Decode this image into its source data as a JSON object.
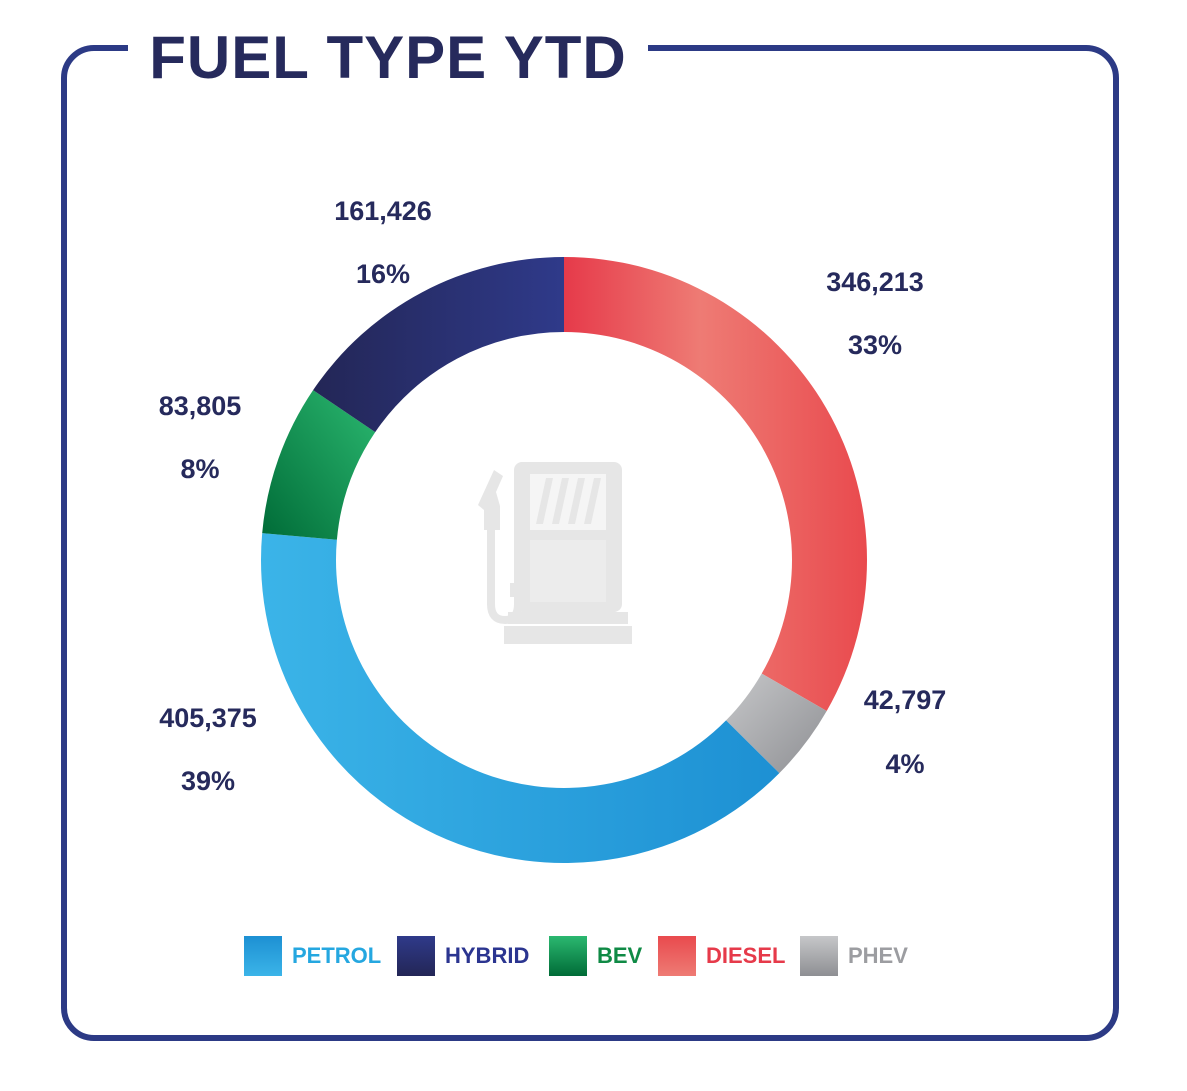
{
  "chart_data": {
    "type": "pie",
    "title": "FUEL TYPE YTD",
    "categories": [
      "DIESEL",
      "PHEV",
      "PETROL",
      "BEV",
      "HYBRID"
    ],
    "values": [
      346213,
      42797,
      405375,
      83805,
      161426
    ],
    "percent_labels": [
      "33%",
      "4%",
      "39%",
      "8%",
      "16%"
    ],
    "value_labels": [
      "346,213",
      "42,797",
      "405,375",
      "83,805",
      "161,426"
    ],
    "donut": true,
    "legend_position": "bottom"
  },
  "colors": {
    "frame": "#2c3a85",
    "title": "#262a5c",
    "DIESEL": [
      "#e63a4a",
      "#ee7b74",
      "#e94a4e"
    ],
    "PHEV": [
      "#c6c7c9",
      "#8e8f93"
    ],
    "PETROL": [
      "#3bb4e8",
      "#1d90d3"
    ],
    "BEV": [
      "#2bb870",
      "#006b37"
    ],
    "HYBRID": [
      "#232656",
      "#2f3a8a"
    ],
    "legend_text": {
      "PETROL": "#25a7e0",
      "HYBRID": "#2b3590",
      "BEV": "#0f8a45",
      "DIESEL": "#e63a4a",
      "PHEV": "#9c9da1"
    }
  },
  "legend": [
    "PETROL",
    "HYBRID",
    "BEV",
    "DIESEL",
    "PHEV"
  ],
  "center_icon": "fuel-pump-icon"
}
